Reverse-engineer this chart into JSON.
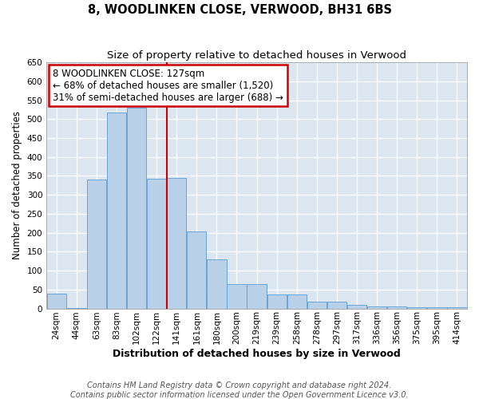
{
  "title": "8, WOODLINKEN CLOSE, VERWOOD, BH31 6BS",
  "subtitle": "Size of property relative to detached houses in Verwood",
  "xlabel": "Distribution of detached houses by size in Verwood",
  "ylabel": "Number of detached properties",
  "bar_labels": [
    "24sqm",
    "44sqm",
    "63sqm",
    "83sqm",
    "102sqm",
    "122sqm",
    "141sqm",
    "161sqm",
    "180sqm",
    "200sqm",
    "219sqm",
    "239sqm",
    "258sqm",
    "278sqm",
    "297sqm",
    "317sqm",
    "336sqm",
    "356sqm",
    "375sqm",
    "395sqm",
    "414sqm"
  ],
  "bar_values": [
    40,
    2,
    340,
    518,
    530,
    343,
    345,
    204,
    130,
    65,
    65,
    37,
    37,
    18,
    18,
    10,
    5,
    5,
    4,
    4,
    4
  ],
  "bar_color": "#b8d0e8",
  "bar_edge_color": "#5b9bd5",
  "plot_bg_color": "#dce6f1",
  "vline_color": "#cc0000",
  "vline_position": 5.5,
  "annotation_text": "8 WOODLINKEN CLOSE: 127sqm\n← 68% of detached houses are smaller (1,520)\n31% of semi-detached houses are larger (688) →",
  "annotation_box_color": "#ffffff",
  "annotation_border_color": "#cc0000",
  "ylim": [
    0,
    650
  ],
  "yticks": [
    0,
    50,
    100,
    150,
    200,
    250,
    300,
    350,
    400,
    450,
    500,
    550,
    600,
    650
  ],
  "footer1": "Contains HM Land Registry data © Crown copyright and database right 2024.",
  "footer2": "Contains public sector information licensed under the Open Government Licence v3.0.",
  "title_fontsize": 10.5,
  "subtitle_fontsize": 9.5,
  "xlabel_fontsize": 9,
  "ylabel_fontsize": 8.5,
  "tick_fontsize": 7.5,
  "annotation_fontsize": 8.5,
  "footer_fontsize": 7
}
